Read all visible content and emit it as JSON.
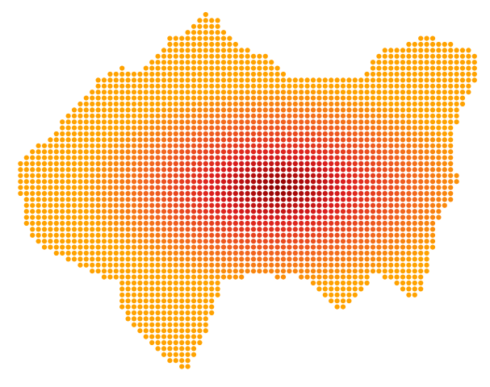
{
  "map": {
    "type": "dot-density-region",
    "colors": {
      "background": "#ffffff",
      "outer": "#ffa200",
      "mid": "#f2641e",
      "inner": "#dc1e1e",
      "center": "#8c0000"
    },
    "intensity_peak": "center-right",
    "label": ""
  }
}
